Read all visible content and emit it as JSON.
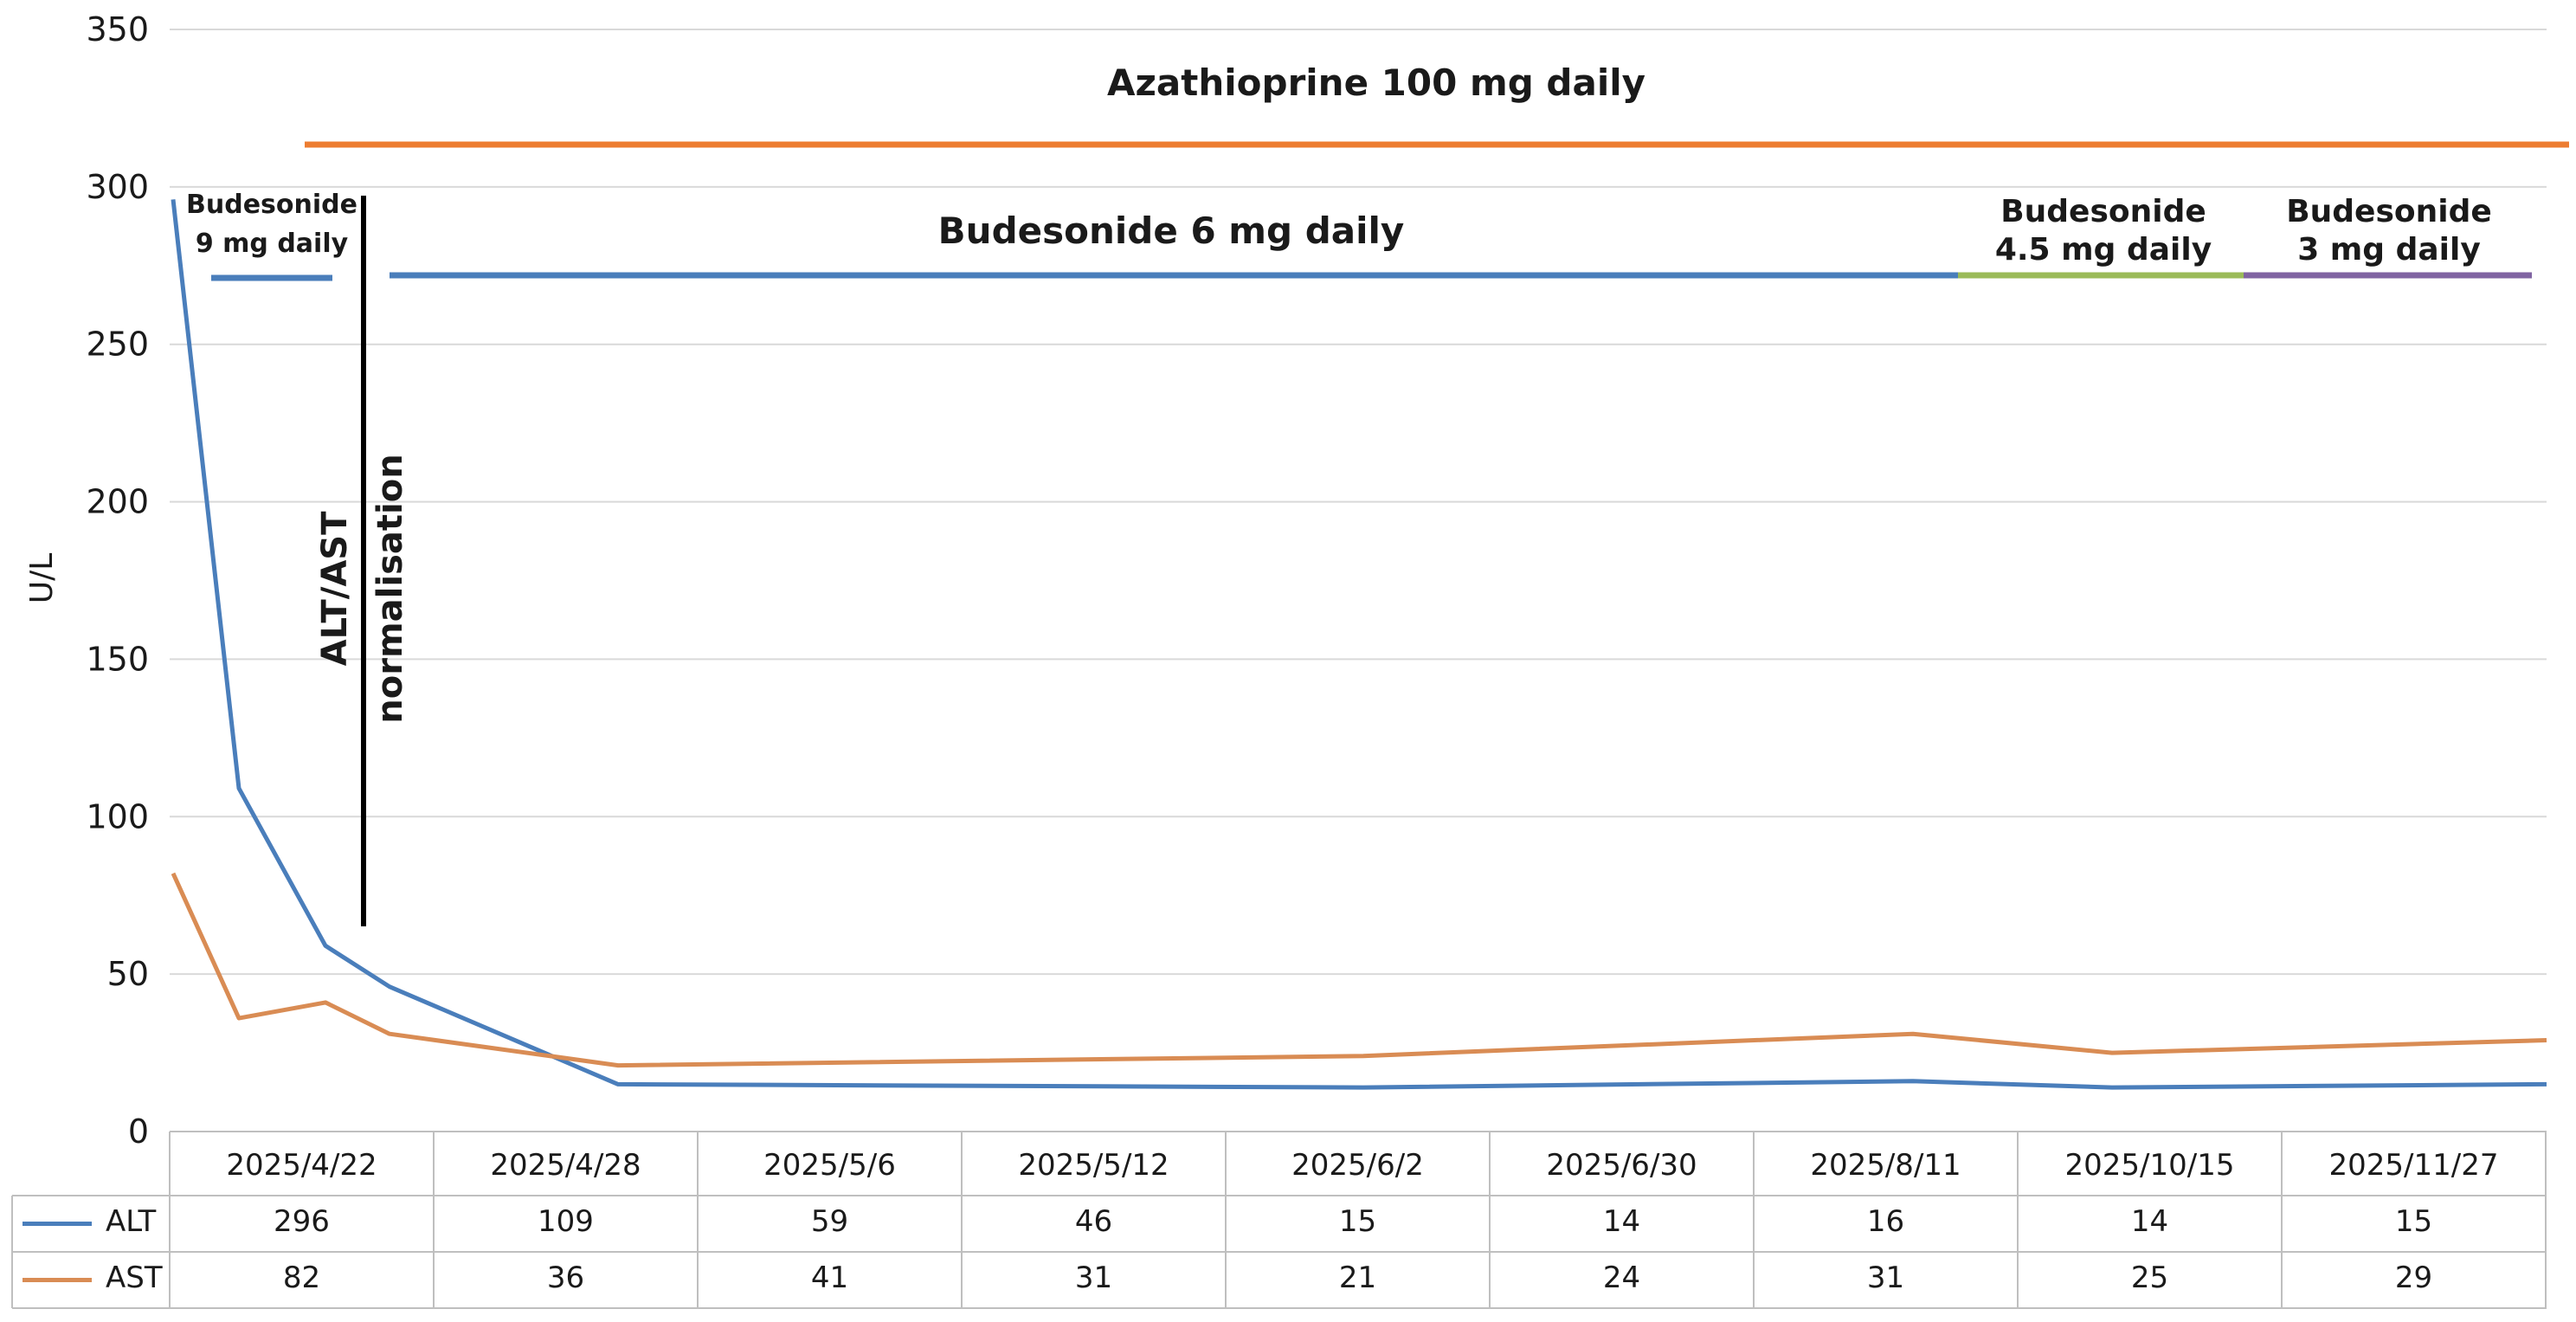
{
  "chart_data": {
    "type": "line",
    "ylabel": "U/L",
    "ylim": [
      0,
      350
    ],
    "yticks": [
      0,
      50,
      100,
      150,
      200,
      250,
      300,
      350
    ],
    "grid": true,
    "legend": "data-table-left",
    "categories": [
      "2025/4/22",
      "2025/4/28",
      "2025/5/6",
      "2025/5/12",
      "2025/6/2",
      "2025/6/30",
      "2025/8/11",
      "2025/10/15",
      "2025/11/27"
    ],
    "series": [
      {
        "name": "ALT",
        "color": "#4a7ebb",
        "values": [
          296,
          109,
          59,
          46,
          15,
          14,
          16,
          14,
          15
        ]
      },
      {
        "name": "AST",
        "color": "#d98c54",
        "values": [
          82,
          36,
          41,
          31,
          21,
          24,
          31,
          25,
          29
        ]
      }
    ],
    "annotations": {
      "azathioprine": {
        "text": "Azathioprine 100 mg daily",
        "color": "#ed7d31"
      },
      "bud9": {
        "lines": [
          "Budesonide",
          "9 mg daily"
        ],
        "color": "#4a7ebb"
      },
      "bud6": {
        "text": "Budesonide 6 mg daily",
        "color": "#4a7ebb"
      },
      "bud45": {
        "lines": [
          "Budesonide",
          "4.5 mg daily"
        ],
        "color": "#9bbb59"
      },
      "bud3": {
        "lines": [
          "Budesonide",
          "3 mg daily"
        ],
        "color": "#8064a2"
      },
      "normalisation": {
        "lines": [
          "ALT/AST",
          "normalisation"
        ],
        "color": "#000000"
      }
    }
  }
}
